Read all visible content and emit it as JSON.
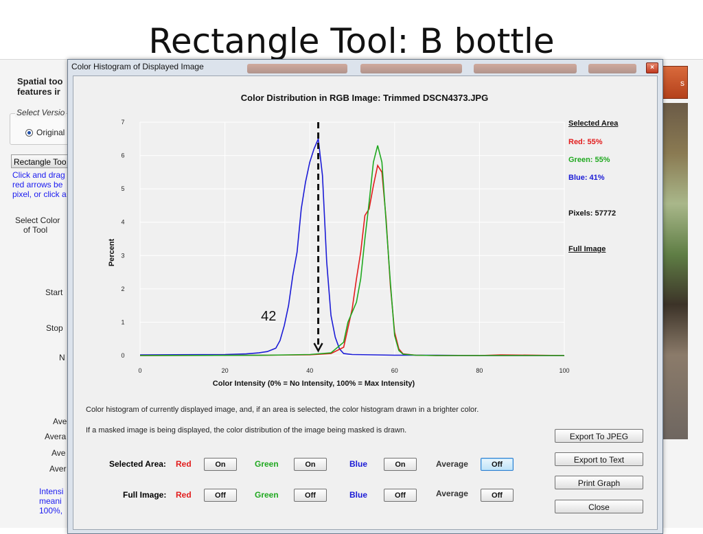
{
  "slide": {
    "title": "Rectangle Tool: B bottle"
  },
  "background_app": {
    "heading_line1": "Spatial too",
    "heading_line2": "features ir",
    "version_group_label": "Select Versio",
    "radio_label": "Original",
    "rectangle_button": "Rectangle Too",
    "help_lines": [
      "Click and drag",
      "red arrows be",
      "pixel, or click a"
    ],
    "select_color_line1": "Select Color",
    "select_color_line2": "of Tool",
    "start_label": "Start",
    "stop_label": "Stop",
    "n_label": "N",
    "avg_labels": [
      "Ave",
      "Avera",
      "Ave",
      "Aver"
    ],
    "intensity_lines": [
      "Intensi",
      "meani",
      "100%,"
    ],
    "orange_button": "s"
  },
  "window": {
    "title": "Color Histogram of Displayed Image",
    "close_glyph": "×"
  },
  "chart_data": {
    "type": "line",
    "title": "Color Distribution in RGB Image: Trimmed DSCN4373.JPG",
    "xlabel": "Color Intensity (0% = No Intensity, 100% = Max Intensity)",
    "ylabel": "Percent",
    "xlim": [
      0,
      100
    ],
    "ylim": [
      0,
      7
    ],
    "x_ticks": [
      0,
      20,
      40,
      60,
      80,
      100
    ],
    "y_ticks": [
      0,
      1,
      2,
      3,
      4,
      5,
      6,
      7
    ],
    "grid": true,
    "legend_position": "right",
    "annotation": {
      "text": "42",
      "marker_x": 42
    },
    "series": [
      {
        "name": "Blue",
        "color": "#1a1ad6",
        "x": [
          0,
          20,
          25,
          28,
          30,
          32,
          33,
          34,
          35,
          36,
          37,
          38,
          39,
          40,
          41,
          42,
          43,
          44,
          45,
          46,
          47,
          48,
          50,
          55,
          60,
          70,
          80,
          85,
          100
        ],
        "y": [
          0.02,
          0.03,
          0.05,
          0.08,
          0.12,
          0.22,
          0.45,
          0.9,
          1.5,
          2.4,
          3.1,
          4.4,
          5.2,
          5.8,
          6.2,
          6.5,
          5.4,
          2.8,
          1.2,
          0.55,
          0.2,
          0.06,
          0.03,
          0.02,
          0.01,
          0.01,
          0.0,
          0.0,
          0.0
        ]
      },
      {
        "name": "Red",
        "color": "#e21b1b",
        "x": [
          0,
          30,
          40,
          45,
          48,
          50,
          51,
          52,
          53,
          54,
          55,
          56,
          57,
          58,
          59,
          60,
          61,
          62,
          65,
          70,
          80,
          85,
          100
        ],
        "y": [
          0.0,
          0.01,
          0.02,
          0.06,
          0.25,
          1.4,
          2.3,
          3.1,
          4.2,
          4.4,
          5.1,
          5.7,
          5.5,
          4.1,
          2.1,
          0.7,
          0.2,
          0.05,
          0.01,
          0.0,
          0.0,
          0.02,
          0.0
        ]
      },
      {
        "name": "Green",
        "color": "#1fa81f",
        "x": [
          0,
          30,
          40,
          45,
          48,
          49,
          50,
          51,
          52,
          53,
          54,
          55,
          56,
          57,
          58,
          59,
          60,
          61,
          62,
          65,
          70,
          80,
          100
        ],
        "y": [
          0.0,
          0.01,
          0.03,
          0.08,
          0.4,
          1.0,
          1.3,
          1.6,
          2.3,
          3.5,
          4.6,
          5.8,
          6.3,
          5.8,
          4.0,
          2.2,
          0.6,
          0.15,
          0.04,
          0.01,
          0.0,
          0.0,
          0.0
        ]
      }
    ]
  },
  "legend": {
    "selected_area_heading": "Selected Area",
    "red": "Red: 55%",
    "green": "Green: 55%",
    "blue": "Blue: 41%",
    "pixels": "Pixels: 57772",
    "full_image_link": "Full Image",
    "red_color": "#e21b1b",
    "green_color": "#1fa81f",
    "blue_color": "#1a1ad6"
  },
  "description": {
    "line1": "Color histogram of currently displayed image, and, if an area is selected, the color histogram drawn in a brighter color.",
    "line2": "If a masked image is being displayed, the color distribution of the image being masked is drawn."
  },
  "controls": {
    "selected_area": {
      "label": "Selected Area:",
      "red_label": "Red",
      "red_button": "On",
      "green_label": "Green",
      "green_button": "On",
      "blue_label": "Blue",
      "blue_button": "On",
      "average_label": "Average",
      "average_button": "Off"
    },
    "full_image": {
      "label": "Full Image:",
      "red_label": "Red",
      "red_button": "Off",
      "green_label": "Green",
      "green_button": "Off",
      "blue_label": "Blue",
      "blue_button": "Off",
      "average_label": "Average",
      "average_button": "Off"
    }
  },
  "actions": {
    "export_jpeg": "Export To JPEG",
    "export_text": "Export to Text",
    "print_graph": "Print Graph",
    "close": "Close"
  }
}
